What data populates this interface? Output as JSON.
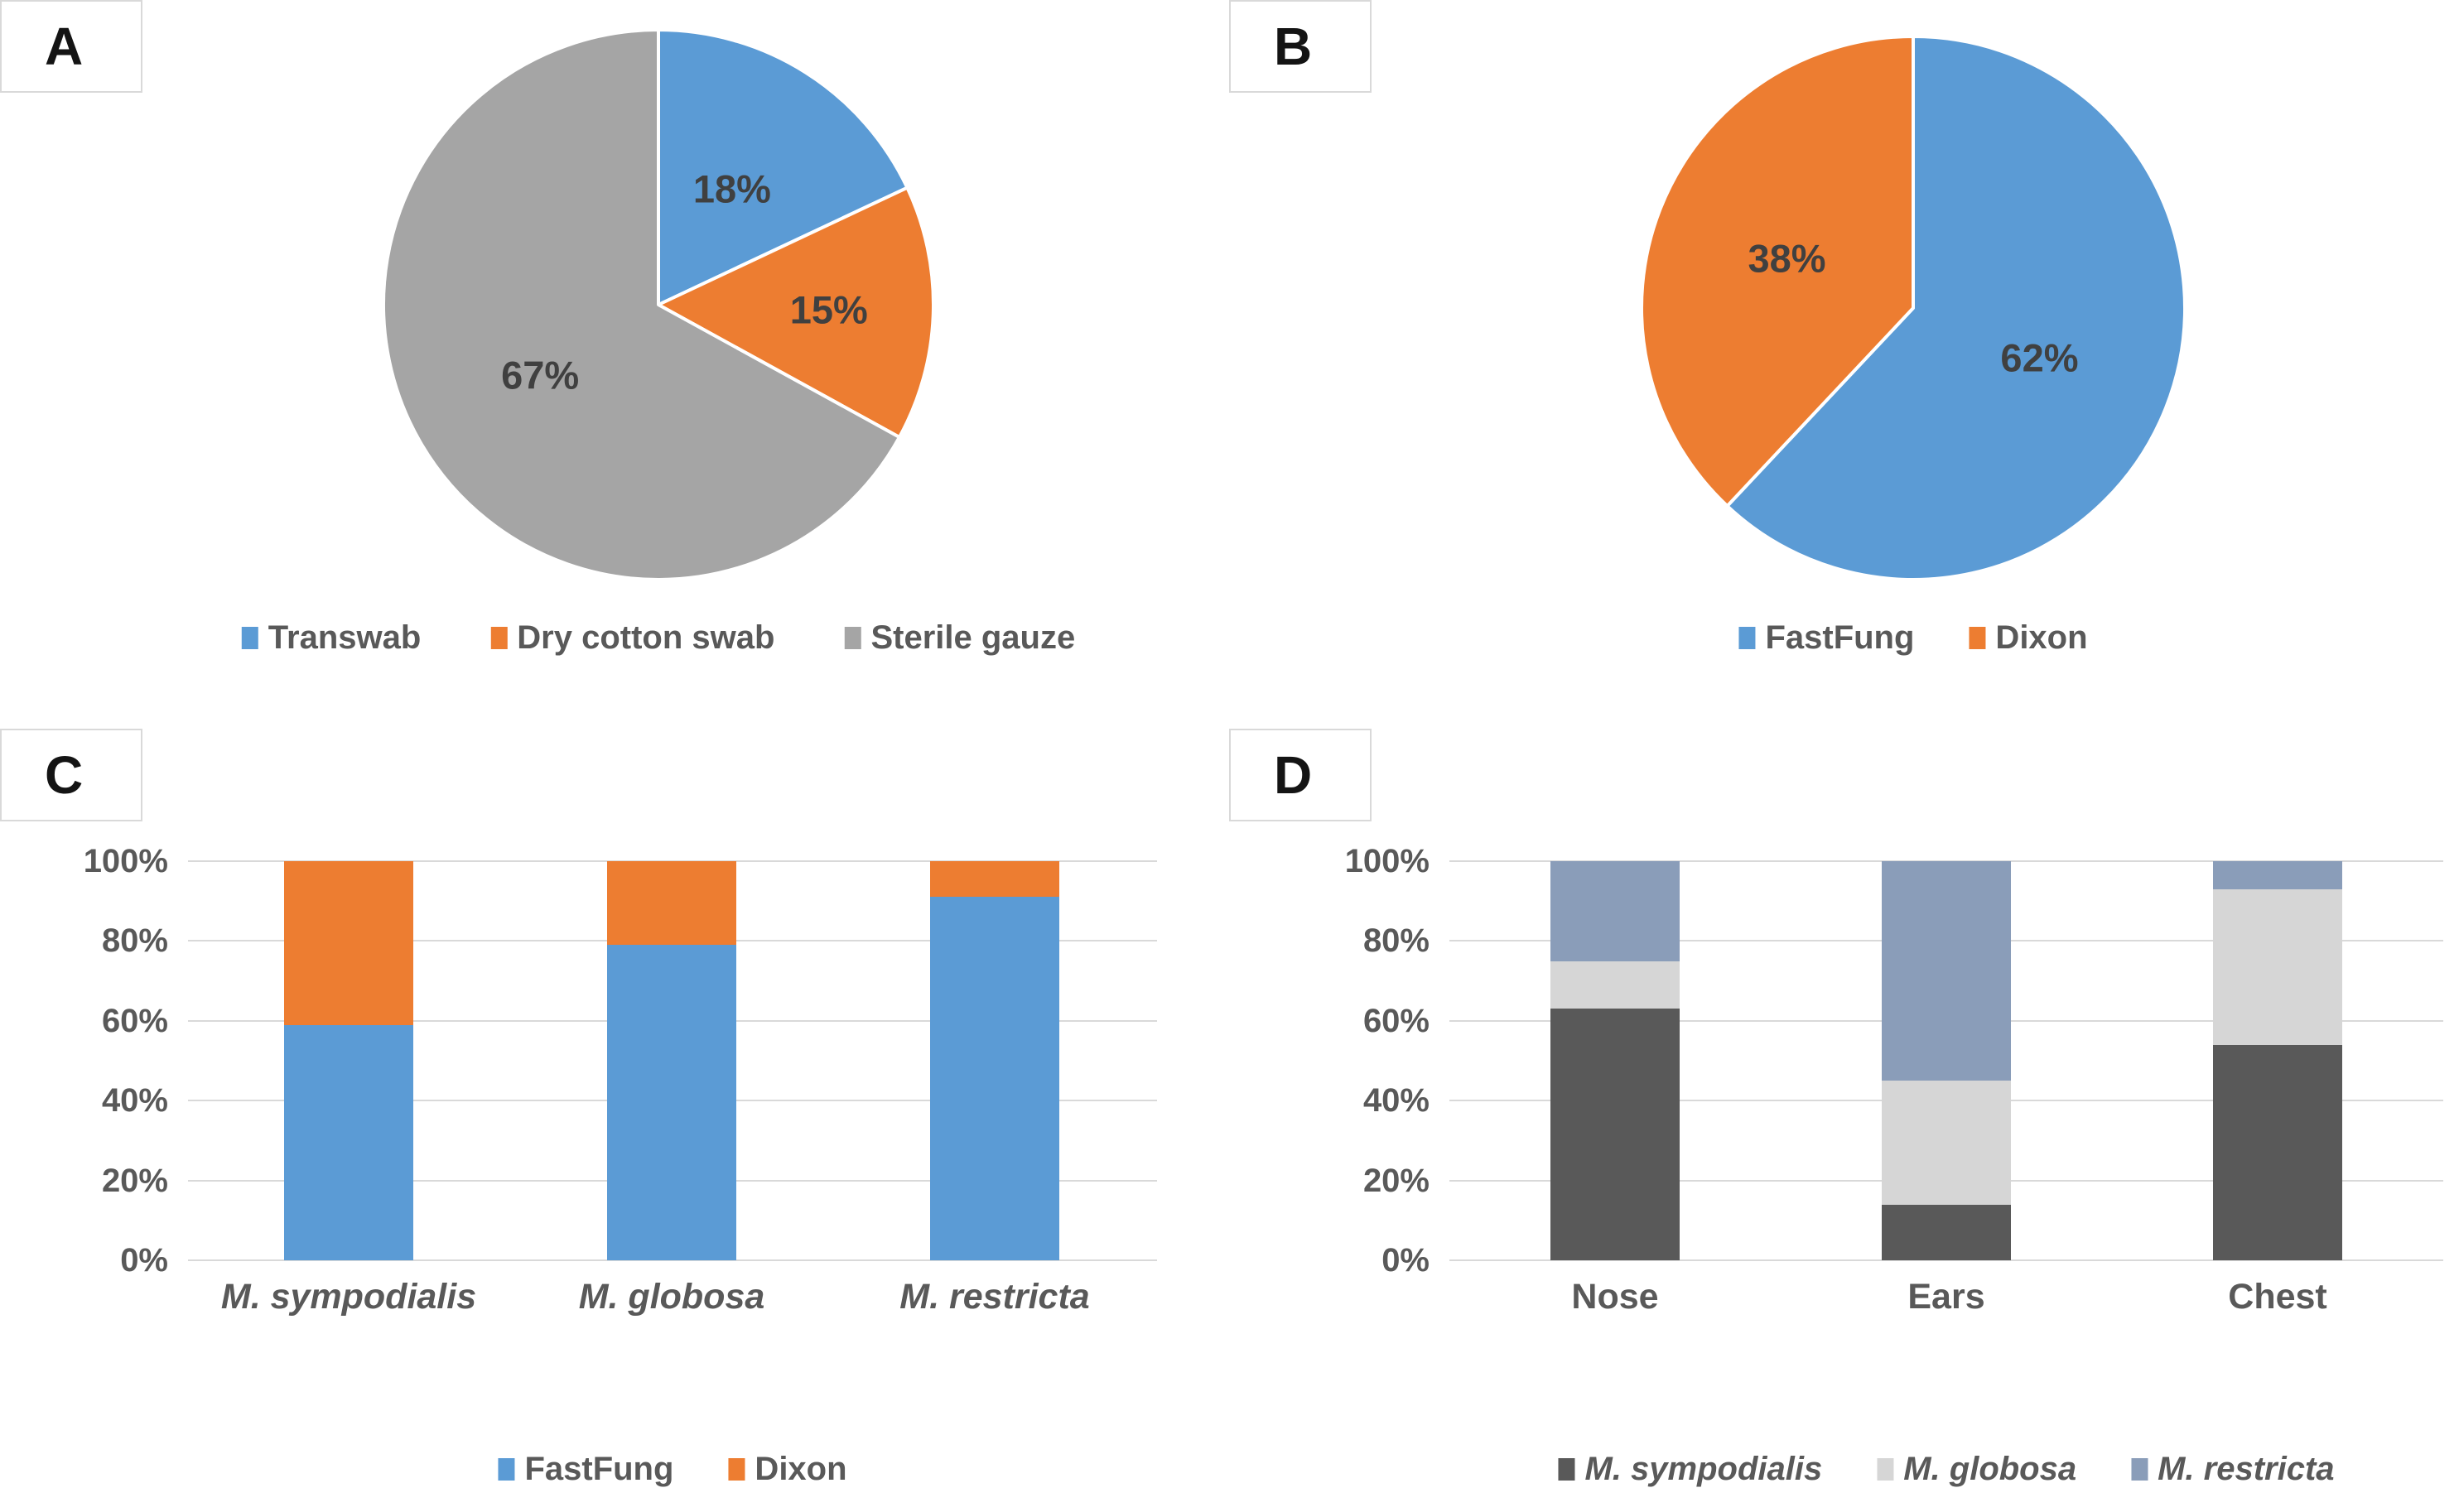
{
  "figure": {
    "background": "#ffffff",
    "text_color": "#595959",
    "data_label_color": "#404040",
    "gridline_color": "#d9d9d9"
  },
  "panels": {
    "a_letter": "A",
    "b_letter": "B",
    "c_letter": "C",
    "d_letter": "D"
  },
  "chart_data": [
    {
      "panel": "A",
      "type": "pie",
      "start_angle_deg": 0,
      "direction": "clockwise",
      "legend_position": "bottom",
      "slices": [
        {
          "label": "Transwab",
          "value": 18,
          "data_label": "18%",
          "color": "#5B9BD5"
        },
        {
          "label": "Dry cotton swab",
          "value": 15,
          "data_label": "15%",
          "color": "#ED7D31"
        },
        {
          "label": "Sterile gauze",
          "value": 67,
          "data_label": "67%",
          "color": "#A5A5A5"
        }
      ]
    },
    {
      "panel": "B",
      "type": "pie",
      "start_angle_deg": 0,
      "direction": "clockwise",
      "legend_position": "bottom",
      "slices": [
        {
          "label": "FastFung",
          "value": 62,
          "data_label": "62%",
          "color": "#5B9BD5"
        },
        {
          "label": "Dixon",
          "value": 38,
          "data_label": "38%",
          "color": "#ED7D31"
        }
      ]
    },
    {
      "panel": "C",
      "type": "bar",
      "stacked": true,
      "percent": true,
      "grid": true,
      "legend_position": "bottom",
      "categories": [
        "M. sympodialis",
        "M. globosa",
        "M. restricta"
      ],
      "categories_italic": true,
      "series_italic": false,
      "series": [
        {
          "name": "FastFung",
          "color": "#5B9BD5",
          "values": [
            59,
            79,
            91
          ]
        },
        {
          "name": "Dixon",
          "color": "#ED7D31",
          "values": [
            41,
            21,
            9
          ]
        }
      ],
      "y_ticks": [
        "0%",
        "20%",
        "40%",
        "60%",
        "80%",
        "100%"
      ],
      "ylim": [
        0,
        100
      ],
      "xlabel": "",
      "ylabel": ""
    },
    {
      "panel": "D",
      "type": "bar",
      "stacked": true,
      "percent": true,
      "grid": true,
      "legend_position": "bottom",
      "categories": [
        "Nose",
        "Ears",
        "Chest"
      ],
      "categories_italic": false,
      "series_italic": true,
      "series": [
        {
          "name": "M. sympodialis",
          "color": "#595959",
          "values": [
            63,
            14,
            54
          ]
        },
        {
          "name": "M. globosa",
          "color": "#D6D6D6",
          "values": [
            12,
            31,
            39
          ]
        },
        {
          "name": "M. restricta",
          "color": "#8A9DB9",
          "values": [
            25,
            55,
            7
          ]
        }
      ],
      "y_ticks": [
        "0%",
        "20%",
        "40%",
        "60%",
        "80%",
        "100%"
      ],
      "ylim": [
        0,
        100
      ],
      "xlabel": "",
      "ylabel": ""
    }
  ]
}
